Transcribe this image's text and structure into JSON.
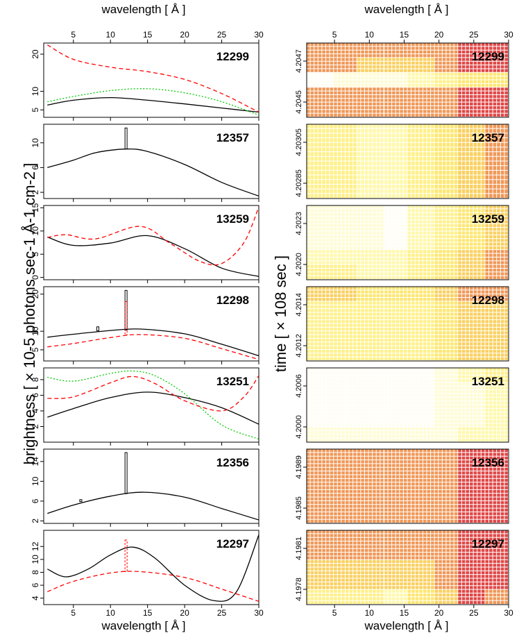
{
  "figure": {
    "top_xlabel": "wavelength [ Å ]",
    "bottom_xlabel": "wavelength [ Å ]",
    "left_ylabel": "brightness [ × 10-5 photons sec-1 Å-1 cm-2 ]",
    "right_ylabel": "time [ × 108 sec ]"
  },
  "chart_data": [
    {
      "type": "line",
      "label": "12299",
      "xlim": [
        1,
        30
      ],
      "ylim": [
        3,
        23
      ],
      "xticks": [
        5,
        10,
        15,
        20,
        25,
        30
      ],
      "yticks": [
        5,
        10,
        20
      ],
      "series": [
        {
          "color": "#000000",
          "dash": "solid",
          "x": [
            1.5,
            5,
            10,
            15,
            20,
            25,
            30
          ],
          "y": [
            6.3,
            7.6,
            8.3,
            7.6,
            6.6,
            5.5,
            4.4
          ]
        },
        {
          "color": "#00cc00",
          "dash": "dotted",
          "x": [
            1.5,
            5,
            10,
            15,
            20,
            25,
            30
          ],
          "y": [
            7.2,
            8.6,
            10.2,
            10.7,
            9.6,
            7.2,
            3.6
          ]
        },
        {
          "color": "#ff0000",
          "dash": "dashed",
          "x": [
            1.5,
            5,
            10,
            15,
            20,
            25,
            30
          ],
          "y": [
            22.5,
            18.6,
            16.5,
            15.3,
            13.2,
            9.4,
            4.4
          ]
        }
      ],
      "bars": []
    },
    {
      "type": "line",
      "label": "12357",
      "xlim": [
        1,
        30
      ],
      "ylim": [
        1,
        13
      ],
      "xticks": [
        5,
        10,
        15,
        20,
        25,
        30
      ],
      "yticks": [
        2,
        6,
        10
      ],
      "series": [
        {
          "color": "#000000",
          "dash": "solid",
          "x": [
            1.5,
            5,
            8,
            12,
            15,
            20,
            25,
            30
          ],
          "y": [
            6.0,
            7.2,
            8.4,
            9.0,
            8.6,
            6.5,
            3.6,
            1.4
          ]
        }
      ],
      "bars": [
        {
          "x": 12.1,
          "y0": 9.0,
          "y1": 12.4,
          "color": "#000000"
        }
      ]
    },
    {
      "type": "line",
      "label": "13259",
      "xlim": [
        1,
        30
      ],
      "ylim": [
        -0.5,
        15.5
      ],
      "xticks": [
        5,
        10,
        15,
        20,
        25,
        30
      ],
      "yticks": [
        0,
        5,
        10,
        15
      ],
      "series": [
        {
          "color": "#000000",
          "dash": "solid",
          "x": [
            1.5,
            5,
            10,
            15,
            20,
            25,
            30
          ],
          "y": [
            8.7,
            6.9,
            7.4,
            9.0,
            6.2,
            2.0,
            0.2
          ]
        },
        {
          "color": "#ff0000",
          "dash": "dashed",
          "x": [
            1.5,
            4,
            8,
            14,
            18,
            22,
            25,
            28,
            30
          ],
          "y": [
            8.6,
            9.2,
            8.3,
            11.0,
            7.4,
            3.5,
            3.0,
            7.5,
            15.2
          ]
        }
      ],
      "bars": []
    },
    {
      "type": "line",
      "label": "12298",
      "xlim": [
        1,
        30
      ],
      "ylim": [
        2,
        22
      ],
      "xticks": [
        5,
        10,
        15,
        20,
        25,
        30
      ],
      "yticks": [
        5,
        10,
        20
      ],
      "series": [
        {
          "color": "#000000",
          "dash": "solid",
          "x": [
            1.5,
            5,
            10,
            14,
            20,
            25,
            30
          ],
          "y": [
            8.4,
            9.2,
            10.2,
            10.6,
            9.3,
            6.5,
            3.4
          ]
        },
        {
          "color": "#ff0000",
          "dash": "dashed",
          "x": [
            1.5,
            5,
            10,
            14,
            20,
            25,
            30
          ],
          "y": [
            5.8,
            6.7,
            8.3,
            9.1,
            8.1,
            5.3,
            2.4
          ]
        }
      ],
      "bars": [
        {
          "x": 12.1,
          "y0": 10.3,
          "y1": 21.0,
          "color": "#000000"
        },
        {
          "x": 8.3,
          "y0": 10.1,
          "y1": 11.2,
          "color": "#000000"
        },
        {
          "x": 12.1,
          "y0": 9.0,
          "y1": 18.0,
          "color": "#ff0000"
        }
      ]
    },
    {
      "type": "line",
      "label": "13251",
      "xlim": [
        1,
        30
      ],
      "ylim": [
        0,
        9.5
      ],
      "xticks": [
        5,
        10,
        15,
        20,
        25,
        30
      ],
      "yticks": [
        2,
        4,
        6,
        8
      ],
      "series": [
        {
          "color": "#000000",
          "dash": "solid",
          "x": [
            1.5,
            5,
            10,
            15,
            20,
            25,
            30
          ],
          "y": [
            3.2,
            4.3,
            5.7,
            6.4,
            5.7,
            4.4,
            2.3
          ]
        },
        {
          "color": "#00cc00",
          "dash": "dotted",
          "x": [
            1.5,
            5,
            10,
            13,
            16,
            20,
            25,
            30
          ],
          "y": [
            8.3,
            7.8,
            8.8,
            9.1,
            8.5,
            6.2,
            2.2,
            0.4
          ]
        },
        {
          "color": "#ff0000",
          "dash": "dashed",
          "x": [
            1.5,
            5,
            10,
            13,
            16,
            20,
            25,
            28,
            30
          ],
          "y": [
            5.6,
            5.8,
            7.6,
            8.4,
            7.5,
            5.3,
            4.0,
            5.8,
            8.5
          ]
        }
      ],
      "bars": []
    },
    {
      "type": "line",
      "label": "12356",
      "xlim": [
        1,
        30
      ],
      "ylim": [
        1.5,
        16.5
      ],
      "xticks": [
        5,
        10,
        15,
        20,
        25,
        30
      ],
      "yticks": [
        2,
        6,
        10,
        14
      ],
      "series": [
        {
          "color": "#000000",
          "dash": "solid",
          "x": [
            1.5,
            5,
            10,
            14.5,
            20,
            25,
            30
          ],
          "y": [
            3.5,
            5.2,
            7.0,
            7.8,
            6.8,
            4.5,
            2.2
          ]
        }
      ],
      "bars": [
        {
          "x": 12.1,
          "y0": 7.5,
          "y1": 15.8,
          "color": "#000000"
        },
        {
          "x": 6.0,
          "y0": 5.9,
          "y1": 6.3,
          "color": "#000000"
        }
      ]
    },
    {
      "type": "line",
      "label": "12297",
      "xlim": [
        1,
        30
      ],
      "ylim": [
        3,
        14.5
      ],
      "xticks": [
        5,
        10,
        15,
        20,
        25,
        30
      ],
      "yticks": [
        4,
        6,
        8,
        10,
        12
      ],
      "series": [
        {
          "color": "#000000",
          "dash": "solid",
          "x": [
            1.5,
            4,
            7,
            10,
            13,
            16,
            20,
            24,
            27,
            30
          ],
          "y": [
            8.5,
            7.3,
            8.5,
            10.7,
            11.9,
            10.2,
            6.0,
            3.6,
            5.0,
            13.8
          ]
        },
        {
          "color": "#ff0000",
          "dash": "dashed",
          "x": [
            1.5,
            5,
            10,
            14,
            20,
            25,
            30
          ],
          "y": [
            5.0,
            6.6,
            7.9,
            8.1,
            7.2,
            5.4,
            3.5
          ]
        }
      ],
      "bars": [
        {
          "x": 12.1,
          "y0": 8.1,
          "y1": 13.0,
          "color": "#ff0000"
        }
      ]
    },
    {
      "type": "heatmap",
      "label": "12299",
      "xlim": [
        1,
        30
      ],
      "yticks": [
        "4.2045",
        "4.2047"
      ],
      "rows": [
        [
          6,
          6,
          6,
          6,
          6,
          6,
          7,
          7
        ],
        [
          6,
          6,
          5,
          5,
          5,
          6,
          7,
          7
        ],
        [
          0,
          1,
          1,
          1,
          2,
          3,
          4,
          4
        ],
        [
          6,
          6,
          6,
          6,
          6,
          6,
          7,
          7
        ],
        [
          6,
          6,
          6,
          6,
          6,
          6,
          7,
          7
        ]
      ]
    },
    {
      "type": "heatmap",
      "label": "12357",
      "xlim": [
        1,
        30
      ],
      "yticks": [
        "4.20285",
        "4.20305"
      ],
      "rows": [
        [
          3,
          3,
          2,
          2,
          3,
          4,
          5,
          6
        ],
        [
          3,
          3,
          2,
          2,
          3,
          4,
          5,
          6
        ],
        [
          3,
          3,
          2,
          2,
          3,
          4,
          5,
          6
        ],
        [
          3,
          3,
          2,
          2,
          3,
          4,
          5,
          6
        ]
      ]
    },
    {
      "type": "heatmap",
      "label": "13259",
      "xlim": [
        1,
        30
      ],
      "yticks": [
        "4.2020",
        "4.2023"
      ],
      "rows": [
        [
          1,
          1,
          1,
          0,
          2,
          3,
          4,
          5
        ],
        [
          1,
          1,
          1,
          0,
          2,
          3,
          4,
          5
        ],
        [
          1,
          1,
          1,
          0,
          2,
          3,
          4,
          5
        ],
        [
          2,
          2,
          2,
          2,
          3,
          4,
          5,
          6
        ],
        [
          3,
          3,
          2,
          2,
          3,
          4,
          5,
          6
        ]
      ]
    },
    {
      "type": "heatmap",
      "label": "12298",
      "xlim": [
        1,
        30
      ],
      "yticks": [
        "4.2012",
        "4.2014"
      ],
      "rows": [
        [
          5,
          5,
          4,
          4,
          4,
          5,
          6,
          6
        ],
        [
          3,
          3,
          3,
          3,
          3,
          4,
          5,
          5
        ],
        [
          3,
          3,
          3,
          3,
          3,
          4,
          5,
          5
        ],
        [
          3,
          3,
          3,
          3,
          3,
          4,
          5,
          5
        ],
        [
          3,
          3,
          3,
          3,
          3,
          4,
          5,
          5
        ]
      ]
    },
    {
      "type": "heatmap",
      "label": "13251",
      "xlim": [
        1,
        30
      ],
      "yticks": [
        "4.2000",
        "4.2006"
      ],
      "rows": [
        [
          0,
          0,
          0,
          0,
          0,
          1,
          2,
          3
        ],
        [
          0,
          0,
          0,
          0,
          0,
          1,
          1,
          2
        ],
        [
          0,
          0,
          0,
          0,
          0,
          1,
          1,
          2
        ],
        [
          0,
          0,
          0,
          0,
          0,
          1,
          1,
          2
        ],
        [
          1,
          1,
          1,
          1,
          1,
          1,
          2,
          2
        ]
      ]
    },
    {
      "type": "heatmap",
      "label": "12356",
      "xlim": [
        1,
        30
      ],
      "yticks": [
        "4.1985",
        "4.1989"
      ],
      "rows": [
        [
          6,
          6,
          6,
          6,
          6,
          6,
          7,
          7
        ],
        [
          6,
          6,
          6,
          6,
          6,
          6,
          7,
          7
        ],
        [
          6,
          6,
          6,
          6,
          6,
          6,
          7,
          7
        ],
        [
          6,
          6,
          6,
          6,
          6,
          6,
          7,
          7
        ],
        [
          6,
          6,
          6,
          6,
          6,
          6,
          7,
          7
        ]
      ]
    },
    {
      "type": "heatmap",
      "label": "12297",
      "xlim": [
        1,
        30
      ],
      "yticks": [
        "4.1978",
        "4.1981"
      ],
      "rows": [
        [
          6,
          6,
          6,
          6,
          6,
          6,
          7,
          7
        ],
        [
          6,
          6,
          6,
          6,
          6,
          6,
          7,
          7
        ],
        [
          5,
          5,
          5,
          5,
          5,
          6,
          7,
          7
        ],
        [
          5,
          5,
          5,
          5,
          5,
          6,
          7,
          7
        ],
        [
          3,
          3,
          3,
          2,
          4,
          5,
          7,
          6
        ]
      ]
    }
  ],
  "heat_palette": [
    "#fffef5",
    "#fffcd5",
    "#fff8aa",
    "#fff088",
    "#fde770",
    "#f9d060",
    "#f09858",
    "#e04848"
  ]
}
